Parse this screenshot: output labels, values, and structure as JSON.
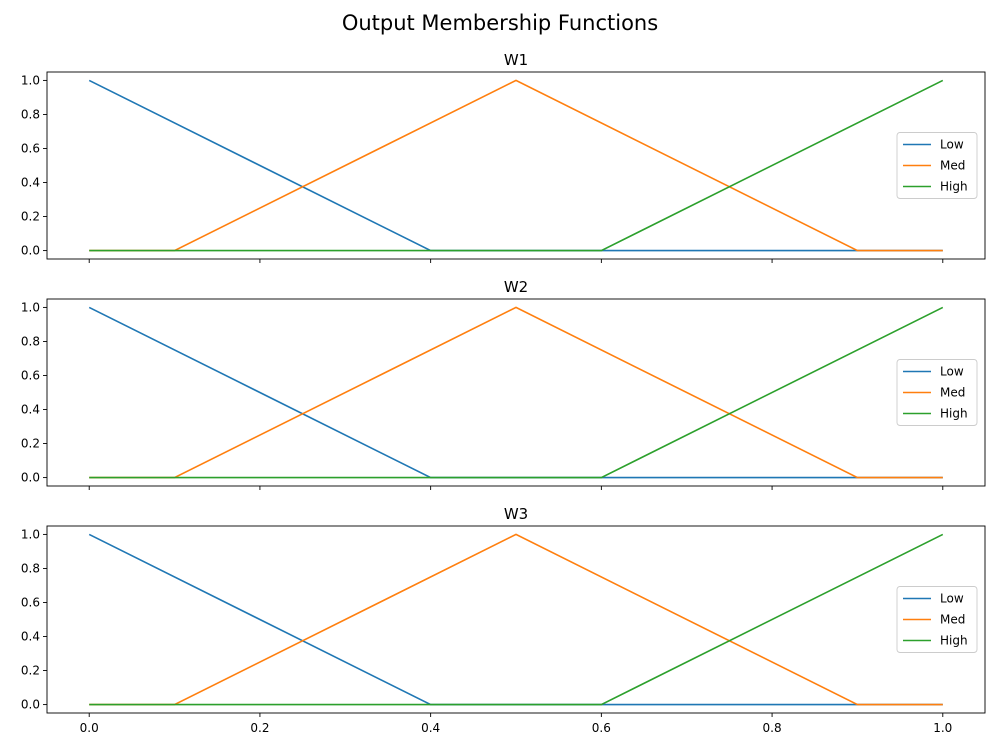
{
  "title": "Output Membership Functions",
  "chart_data": [
    {
      "type": "line",
      "title": "W1",
      "xlabel": "",
      "ylabel": "",
      "xlim": [
        0.0,
        1.0
      ],
      "ylim": [
        0.0,
        1.0
      ],
      "xticks": [
        "0.0",
        "0.2",
        "0.4",
        "0.6",
        "0.8",
        "1.0"
      ],
      "show_xtick_labels": false,
      "yticks": [
        "0.0",
        "0.2",
        "0.4",
        "0.6",
        "0.8",
        "1.0"
      ],
      "legend_position": "center-right",
      "series": [
        {
          "name": "Low",
          "color": "#1f77b4",
          "x": [
            0.0,
            0.4,
            0.6,
            0.9,
            1.0
          ],
          "y": [
            1.0,
            0.0,
            0.0,
            0.0,
            0.0
          ]
        },
        {
          "name": "Med",
          "color": "#ff7f0e",
          "x": [
            0.0,
            0.1,
            0.5,
            0.9,
            1.0
          ],
          "y": [
            0.0,
            0.0,
            1.0,
            0.0,
            0.0
          ]
        },
        {
          "name": "High",
          "color": "#2ca02c",
          "x": [
            0.0,
            0.4,
            0.6,
            1.0
          ],
          "y": [
            0.0,
            0.0,
            0.0,
            1.0
          ]
        }
      ]
    },
    {
      "type": "line",
      "title": "W2",
      "xlabel": "",
      "ylabel": "",
      "xlim": [
        0.0,
        1.0
      ],
      "ylim": [
        0.0,
        1.0
      ],
      "xticks": [
        "0.0",
        "0.2",
        "0.4",
        "0.6",
        "0.8",
        "1.0"
      ],
      "show_xtick_labels": false,
      "yticks": [
        "0.0",
        "0.2",
        "0.4",
        "0.6",
        "0.8",
        "1.0"
      ],
      "legend_position": "center-right",
      "series": [
        {
          "name": "Low",
          "color": "#1f77b4",
          "x": [
            0.0,
            0.4,
            0.6,
            0.9,
            1.0
          ],
          "y": [
            1.0,
            0.0,
            0.0,
            0.0,
            0.0
          ]
        },
        {
          "name": "Med",
          "color": "#ff7f0e",
          "x": [
            0.0,
            0.1,
            0.5,
            0.9,
            1.0
          ],
          "y": [
            0.0,
            0.0,
            1.0,
            0.0,
            0.0
          ]
        },
        {
          "name": "High",
          "color": "#2ca02c",
          "x": [
            0.0,
            0.4,
            0.6,
            1.0
          ],
          "y": [
            0.0,
            0.0,
            0.0,
            1.0
          ]
        }
      ]
    },
    {
      "type": "line",
      "title": "W3",
      "xlabel": "",
      "ylabel": "",
      "xlim": [
        0.0,
        1.0
      ],
      "ylim": [
        0.0,
        1.0
      ],
      "xticks": [
        "0.0",
        "0.2",
        "0.4",
        "0.6",
        "0.8",
        "1.0"
      ],
      "show_xtick_labels": true,
      "yticks": [
        "0.0",
        "0.2",
        "0.4",
        "0.6",
        "0.8",
        "1.0"
      ],
      "legend_position": "center-right",
      "series": [
        {
          "name": "Low",
          "color": "#1f77b4",
          "x": [
            0.0,
            0.4,
            0.6,
            0.9,
            1.0
          ],
          "y": [
            1.0,
            0.0,
            0.0,
            0.0,
            0.0
          ]
        },
        {
          "name": "Med",
          "color": "#ff7f0e",
          "x": [
            0.0,
            0.1,
            0.5,
            0.9,
            1.0
          ],
          "y": [
            0.0,
            0.0,
            1.0,
            0.0,
            0.0
          ]
        },
        {
          "name": "High",
          "color": "#2ca02c",
          "x": [
            0.0,
            0.4,
            0.6,
            1.0
          ],
          "y": [
            0.0,
            0.0,
            0.0,
            1.0
          ]
        }
      ]
    }
  ]
}
